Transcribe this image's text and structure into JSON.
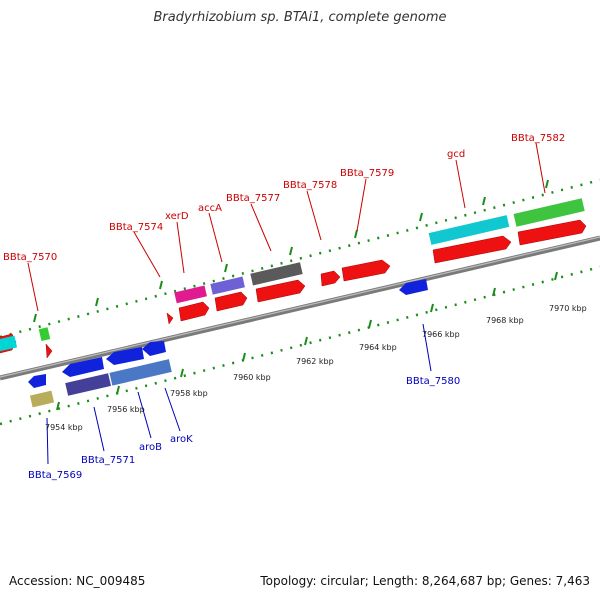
{
  "title": "Bradyrhizobium sp. BTAi1, complete genome",
  "footer": {
    "accession": "Accession: NC_009485",
    "summary": "Topology: circular; Length: 8,264,687 bp; Genes: 7,463"
  },
  "colors": {
    "forward_label": "#cc0000",
    "reverse_label": "#0000bb",
    "backbone": "#808080",
    "tick": "#1a8c1a"
  },
  "kbp_labels": [
    "7954 kbp",
    "7956 kbp",
    "7958 kbp",
    "7960 kbp",
    "7962 kbp",
    "7964 kbp",
    "7966 kbp",
    "7968 kbp",
    "7970 kbp"
  ],
  "forward_labels": [
    "BBta_7570",
    "BBta_7574",
    "xerD",
    "accA",
    "BBta_7577",
    "BBta_7578",
    "BBta_7579",
    "gcd",
    "BBta_7582"
  ],
  "reverse_labels": [
    "BBta_7569",
    "BBta_7571",
    "aroB",
    "aroK",
    "BBta_7580"
  ]
}
